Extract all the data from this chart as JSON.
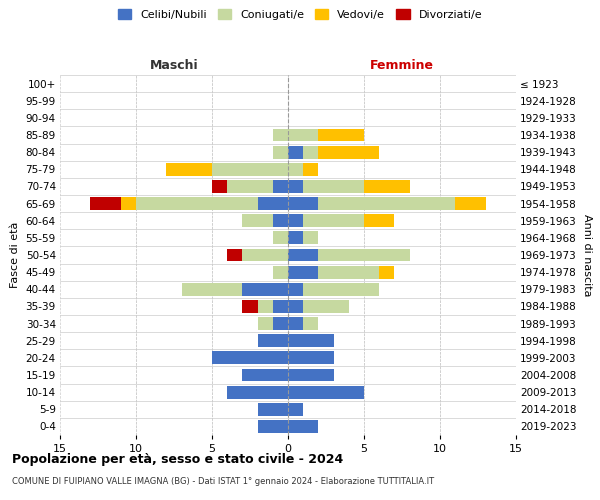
{
  "age_groups": [
    "0-4",
    "5-9",
    "10-14",
    "15-19",
    "20-24",
    "25-29",
    "30-34",
    "35-39",
    "40-44",
    "45-49",
    "50-54",
    "55-59",
    "60-64",
    "65-69",
    "70-74",
    "75-79",
    "80-84",
    "85-89",
    "90-94",
    "95-99",
    "100+"
  ],
  "birth_years": [
    "2019-2023",
    "2014-2018",
    "2009-2013",
    "2004-2008",
    "1999-2003",
    "1994-1998",
    "1989-1993",
    "1984-1988",
    "1979-1983",
    "1974-1978",
    "1969-1973",
    "1964-1968",
    "1959-1963",
    "1954-1958",
    "1949-1953",
    "1944-1948",
    "1939-1943",
    "1934-1938",
    "1929-1933",
    "1924-1928",
    "≤ 1923"
  ],
  "maschi": {
    "celibi": [
      2,
      2,
      4,
      3,
      5,
      2,
      1,
      1,
      3,
      0,
      0,
      0,
      1,
      2,
      1,
      0,
      0,
      0,
      0,
      0,
      0
    ],
    "coniugati": [
      0,
      0,
      0,
      0,
      0,
      0,
      1,
      1,
      4,
      1,
      3,
      1,
      2,
      8,
      3,
      5,
      1,
      1,
      0,
      0,
      0
    ],
    "vedovi": [
      0,
      0,
      0,
      0,
      0,
      0,
      0,
      0,
      0,
      0,
      0,
      0,
      0,
      1,
      0,
      3,
      0,
      0,
      0,
      0,
      0
    ],
    "divorziati": [
      0,
      0,
      0,
      0,
      0,
      0,
      0,
      1,
      0,
      0,
      1,
      0,
      0,
      2,
      1,
      0,
      0,
      0,
      0,
      0,
      0
    ]
  },
  "femmine": {
    "nubili": [
      2,
      1,
      5,
      3,
      3,
      3,
      1,
      1,
      1,
      2,
      2,
      1,
      1,
      2,
      1,
      0,
      1,
      0,
      0,
      0,
      0
    ],
    "coniugate": [
      0,
      0,
      0,
      0,
      0,
      0,
      1,
      3,
      5,
      4,
      6,
      1,
      4,
      9,
      4,
      1,
      1,
      2,
      0,
      0,
      0
    ],
    "vedove": [
      0,
      0,
      0,
      0,
      0,
      0,
      0,
      0,
      0,
      1,
      0,
      0,
      2,
      2,
      3,
      1,
      4,
      3,
      0,
      0,
      0
    ],
    "divorziate": [
      0,
      0,
      0,
      0,
      0,
      0,
      0,
      0,
      0,
      0,
      0,
      0,
      0,
      0,
      0,
      0,
      0,
      0,
      0,
      0,
      0
    ]
  },
  "colors": {
    "celibi_nubili": "#4472c4",
    "coniugati": "#c6d9a0",
    "vedovi": "#ffc000",
    "divorziati": "#c00000"
  },
  "xlim": 15,
  "title": "Popolazione per età, sesso e stato civile - 2024",
  "subtitle": "COMUNE DI FUIPIANO VALLE IMAGNA (BG) - Dati ISTAT 1° gennaio 2024 - Elaborazione TUTTITALIA.IT",
  "ylabel_left": "Fasce di età",
  "ylabel_right": "Anni di nascita",
  "xlabel_maschi": "Maschi",
  "xlabel_femmine": "Femmine",
  "legend_labels": [
    "Celibi/Nubili",
    "Coniugati/e",
    "Vedovi/e",
    "Divorziati/e"
  ],
  "bg_color": "#ffffff",
  "grid_color": "#cccccc"
}
